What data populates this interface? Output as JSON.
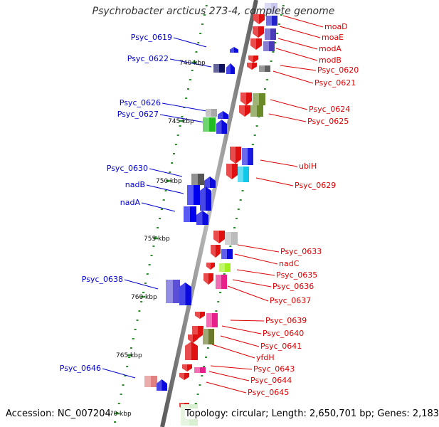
{
  "title": "Psychrobacter arcticus 273-4, complete genome",
  "footer": {
    "accession": "Accession: NC_007204",
    "topology": "Topology: circular; Length: 2,650,701 bp; Genes: 2,183"
  },
  "colors": {
    "backbone": "#8a8a8a",
    "tick": "#2e8b2e",
    "left_label": "#0000cc",
    "right_label": "#dd0000",
    "kbp_label": "#111111"
  },
  "kbp_labels": [
    "740 kbp",
    "745 kbp",
    "750 kbp",
    "755 kbp",
    "760 kbp",
    "765 kbp",
    "770 kbp"
  ],
  "genes_left": [
    {
      "label": "Psyc_0619"
    },
    {
      "label": "Psyc_0622"
    },
    {
      "label": "Psyc_0626"
    },
    {
      "label": "Psyc_0627"
    },
    {
      "label": "Psyc_0630"
    },
    {
      "label": "nadB"
    },
    {
      "label": "nadA"
    },
    {
      "label": "Psyc_0638"
    },
    {
      "label": "Psyc_0646"
    }
  ],
  "genes_right": [
    {
      "label": "moaD"
    },
    {
      "label": "moaE"
    },
    {
      "label": "modA"
    },
    {
      "label": "modB"
    },
    {
      "label": "Psyc_0620"
    },
    {
      "label": "Psyc_0621"
    },
    {
      "label": "Psyc_0624"
    },
    {
      "label": "Psyc_0625"
    },
    {
      "label": "ubiH"
    },
    {
      "label": "Psyc_0629"
    },
    {
      "label": "Psyc_0633"
    },
    {
      "label": "nadC"
    },
    {
      "label": "Psyc_0635"
    },
    {
      "label": "Psyc_0636"
    },
    {
      "label": "Psyc_0637"
    },
    {
      "label": "Psyc_0639"
    },
    {
      "label": "Psyc_0640"
    },
    {
      "label": "Psyc_0641"
    },
    {
      "label": "yfdH"
    },
    {
      "label": "Psyc_0643"
    },
    {
      "label": "Psyc_0644"
    },
    {
      "label": "Psyc_0645"
    }
  ]
}
